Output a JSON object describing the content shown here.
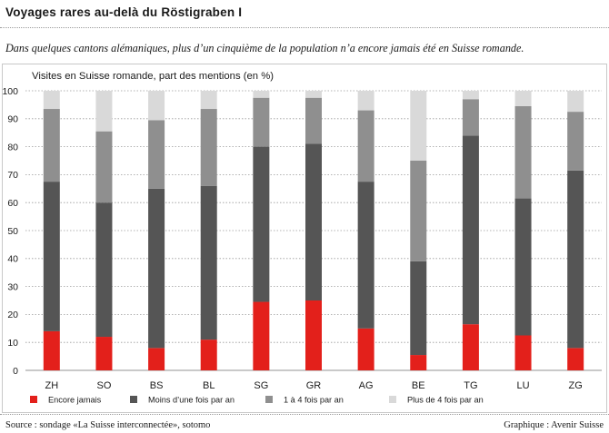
{
  "header": {
    "title": "Voyages rares au-delà du Röstigraben I",
    "subtitle": "Dans quelques cantons alémaniques, plus d’un cinquième de la population n’a encore jamais été en Suisse romande."
  },
  "footer": {
    "source": "Source : sondage «La Suisse interconnectée», sotomo",
    "credit": "Graphique : Avenir Suisse"
  },
  "colors": {
    "encore_jamais": "#e3201b",
    "moins_une_fois": "#555555",
    "un_a_quatre": "#8f8f8f",
    "plus_de_quatre": "#d9d9d9",
    "gridline": "#9a9a9a"
  },
  "chart_data": {
    "type": "bar",
    "stacked": true,
    "ylabel": "Visites en Suisse romande, part des mentions (en %)",
    "xlabel": "",
    "ylim": [
      0,
      100
    ],
    "yticks": [
      0,
      10,
      20,
      30,
      40,
      50,
      60,
      70,
      80,
      90,
      100
    ],
    "grid": "horizontal dotted",
    "legend_position": "bottom",
    "categories": [
      "ZH",
      "SO",
      "BS",
      "BL",
      "SG",
      "GR",
      "AG",
      "BE",
      "TG",
      "LU",
      "ZG"
    ],
    "series": [
      {
        "name": "Encore jamais",
        "color": "#e3201b",
        "values": [
          14,
          12,
          8,
          11,
          24.5,
          25,
          15,
          5.5,
          16.5,
          12.5,
          8
        ]
      },
      {
        "name": "Moins d’une fois par an",
        "color": "#555555",
        "values": [
          53.5,
          48,
          57,
          55,
          55.5,
          56,
          52.5,
          33.5,
          67.5,
          49,
          63.5
        ]
      },
      {
        "name": "1 à 4 fois par an",
        "color": "#8f8f8f",
        "values": [
          26,
          25.5,
          24.5,
          27.5,
          17.5,
          16.5,
          25.5,
          36,
          13,
          33,
          21
        ]
      },
      {
        "name": "Plus de 4 fois par an",
        "color": "#d9d9d9",
        "values": [
          6.5,
          14.5,
          10.5,
          6.5,
          2.5,
          2.5,
          7,
          25,
          3,
          5.5,
          7.5
        ]
      }
    ]
  }
}
